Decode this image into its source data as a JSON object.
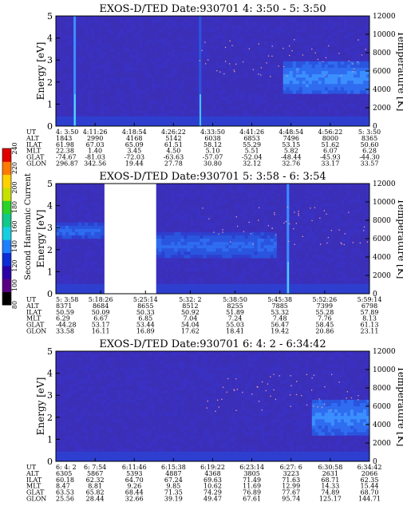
{
  "colorbar": {
    "label": "Second Harmonic Current",
    "ticks": [
      "240",
      "220",
      "200",
      "180",
      "160",
      "140",
      "120",
      "100",
      "80"
    ],
    "colors": [
      "#000000",
      "#5a0082",
      "#2a00a6",
      "#0d2cd6",
      "#1f7fff",
      "#15cfe0",
      "#10c98a",
      "#2ad22a",
      "#c8e000",
      "#ffd100",
      "#ff7a00",
      "#e00000"
    ]
  },
  "chart_data": [
    {
      "type": "heatmap",
      "title": "EXOS-D/TED   Date:930701  4: 3:50 - 5: 3:50",
      "ylabel": "Energy [eV]",
      "y2label": "Temperature [K]",
      "yticks": [
        "0",
        "1",
        "2",
        "3",
        "4",
        "5"
      ],
      "y2ticks": [
        "0",
        "2000",
        "4000",
        "6000",
        "8000",
        "10000",
        "12000"
      ],
      "ylim": [
        0,
        5
      ],
      "y2lim": [
        0,
        12000
      ],
      "row_labels": [
        "UT",
        "ALT",
        "ILAT",
        "MLT",
        "GLAT",
        "GLON"
      ],
      "columns": [
        [
          "4: 3:50",
          "1843",
          "61.98",
          "22.38",
          "-74.67",
          "296.87"
        ],
        [
          "4:11:26",
          "2990",
          "67.03",
          "1.40",
          "-81.03",
          "342.56"
        ],
        [
          "4:18:54",
          "4168",
          "65.09",
          "3.45",
          "-72.03",
          "19.44"
        ],
        [
          "4:26:22",
          "5142",
          "61.51",
          "4.50",
          "-63.63",
          "27.78"
        ],
        [
          "4:33:50",
          "6038",
          "58.12",
          "5.10",
          "-57.07",
          "30.80"
        ],
        [
          "4:41:26",
          "6853",
          "55.29",
          "5.51",
          "-52.04",
          "32.12"
        ],
        [
          "4:48:54",
          "7496",
          "53.15",
          "5.82",
          "-48.44",
          "32.76"
        ],
        [
          "4:56:22",
          "8000",
          "51.62",
          "6.07",
          "-45.93",
          "33.17"
        ],
        [
          "5: 3:50",
          "8365",
          "50.60",
          "6.28",
          "-44.30",
          "33.57"
        ]
      ],
      "features": [
        {
          "kind": "spike",
          "x": 0.06,
          "level": 5
        },
        {
          "kind": "spike",
          "x": 0.46,
          "level": 3
        },
        {
          "kind": "band",
          "from": 0.72,
          "to": 1.0,
          "ylo": 1.4,
          "yhi": 3.0,
          "level": 5
        }
      ],
      "gaps": []
    },
    {
      "type": "heatmap",
      "title": "EXOS-D/TED   Date:930701  5: 3:58 - 6: 3:54",
      "ylabel": "Energy [eV]",
      "y2label": "Temperature [K]",
      "yticks": [
        "0",
        "1",
        "2",
        "3",
        "4",
        "5"
      ],
      "y2ticks": [
        "0",
        "2000",
        "4000",
        "6000",
        "8000",
        "10000",
        "12000"
      ],
      "ylim": [
        0,
        5
      ],
      "y2lim": [
        0,
        12000
      ],
      "row_labels": [
        "UT",
        "ALT",
        "ILAT",
        "MLT",
        "GLAT",
        "GLON"
      ],
      "columns": [
        [
          "5: 3:58",
          "8371",
          "50.59",
          "6.29",
          "-44.28",
          "33.58"
        ],
        [
          "5:18:26",
          "8684",
          "50.09",
          "6.67",
          "53.17",
          "16.11"
        ],
        [
          "5:25:14",
          "8655",
          "50.33",
          "6.85",
          "53.44",
          "16.89"
        ],
        [
          "5:32: 2",
          "8512",
          "50.92",
          "7.04",
          "54.04",
          "17.62"
        ],
        [
          "5:38:50",
          "8255",
          "51.89",
          "7.24",
          "55.03",
          "18.41"
        ],
        [
          "5:45:38",
          "7885",
          "53.32",
          "7.48",
          "56.47",
          "19.42"
        ],
        [
          "5:52:26",
          "7399",
          "55.28",
          "7.76",
          "58.45",
          "20.86"
        ],
        [
          "5:59:14",
          "6798",
          "57.89",
          "8.13",
          "61.13",
          "23.11"
        ]
      ],
      "features": [
        {
          "kind": "band",
          "from": 0.0,
          "to": 0.15,
          "ylo": 2.5,
          "yhi": 3.2,
          "level": 4
        },
        {
          "kind": "band",
          "from": 0.32,
          "to": 0.7,
          "ylo": 1.6,
          "yhi": 2.8,
          "level": 4
        },
        {
          "kind": "spike",
          "x": 0.74,
          "level": 5
        }
      ],
      "gaps": [
        [
          0.155,
          0.32
        ]
      ]
    },
    {
      "type": "heatmap",
      "title": "EXOS-D/TED   Date:930701  6: 4: 2 - 6:34:42",
      "ylabel": "Energy [eV]",
      "y2label": "Temperature [K]",
      "yticks": [
        "0",
        "1",
        "2",
        "3",
        "4",
        "5"
      ],
      "y2ticks": [
        "0",
        "2000",
        "4000",
        "6000",
        "8000",
        "10000",
        "12000"
      ],
      "ylim": [
        0,
        5
      ],
      "y2lim": [
        0,
        12000
      ],
      "row_labels": [
        "UT",
        "ALT",
        "ILAT",
        "MLT",
        "GLAT",
        "GLON"
      ],
      "columns": [
        [
          "6: 4: 2",
          "6305",
          "60.18",
          "8.47",
          "63.53",
          "25.56"
        ],
        [
          "6: 7:54",
          "5867",
          "62.32",
          "8.81",
          "65.82",
          "28.44"
        ],
        [
          "6:11:46",
          "5393",
          "64.70",
          "9.26",
          "68.44",
          "32.66"
        ],
        [
          "6:15:38",
          "4887",
          "67.24",
          "9.85",
          "71.35",
          "39.19"
        ],
        [
          "6:19:22",
          "4368",
          "69.63",
          "10.62",
          "74.29",
          "49.47"
        ],
        [
          "6:23:14",
          "3805",
          "71.49",
          "11.69",
          "76.89",
          "67.61"
        ],
        [
          "6:27: 6",
          "3223",
          "71.63",
          "12.99",
          "77.67",
          "95.74"
        ],
        [
          "6:30:58",
          "2631",
          "68.71",
          "14.33",
          "74.89",
          "125.17"
        ],
        [
          "6:34:42",
          "2066",
          "62.35",
          "15.44",
          "68.70",
          "144.71"
        ]
      ],
      "features": [
        {
          "kind": "band",
          "from": 0.82,
          "to": 1.0,
          "ylo": 1.2,
          "yhi": 2.8,
          "level": 5
        }
      ],
      "gaps": []
    }
  ]
}
